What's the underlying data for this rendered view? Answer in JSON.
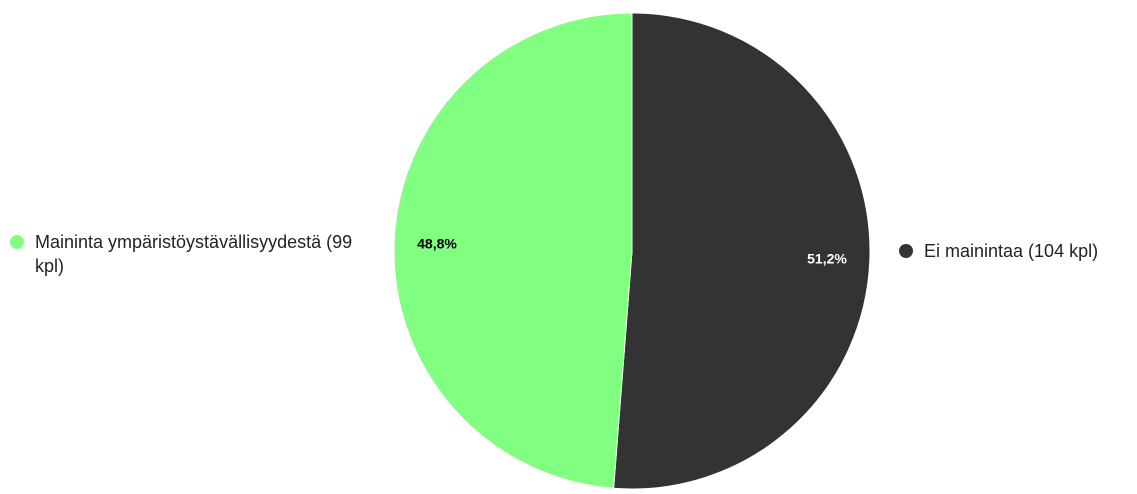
{
  "chart_data": {
    "type": "pie",
    "slices": [
      {
        "label": "Mainita ympäristöystävällisyydestä (99 kpl)",
        "value": 99,
        "percent_label": "48,8%",
        "color": "#80ff80",
        "label_color": "#000000"
      },
      {
        "label": "Ei mainintaa (104 kpl)",
        "value": 104,
        "percent_label": "51,2%",
        "color": "#333333",
        "label_color": "#ffffff"
      }
    ],
    "legend": [
      {
        "label": "Maininta ympäristöystävällisyydestä (99 kpl)",
        "color": "#80ff80",
        "placement": "left"
      },
      {
        "label": "Ei mainintaa (104 kpl)",
        "color": "#333333",
        "placement": "right"
      }
    ],
    "start_angle": "top",
    "direction": "clockwise"
  }
}
